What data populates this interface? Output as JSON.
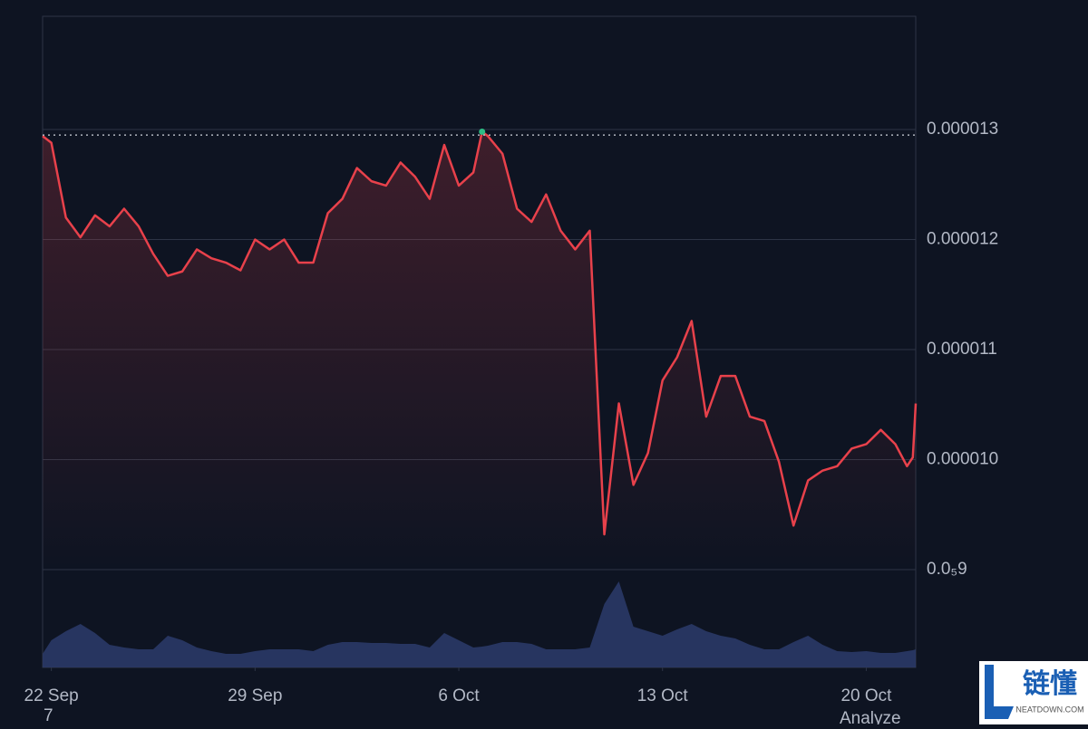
{
  "chart_data": {
    "type": "line",
    "x": [
      -0.3,
      0,
      0.5,
      1,
      1.5,
      2,
      2.5,
      3,
      3.5,
      4,
      4.5,
      5,
      5.5,
      6,
      6.5,
      7,
      7.5,
      8,
      8.5,
      9,
      9.5,
      10,
      10.5,
      11,
      11.5,
      12,
      12.5,
      13,
      13.5,
      14,
      14.5,
      14.8,
      15,
      15.5,
      16,
      16.5,
      17,
      17.5,
      18,
      18.5,
      19,
      19.5,
      20,
      20.5,
      21,
      21.5,
      22,
      22.5,
      23,
      23.5,
      24,
      24.5,
      25,
      25.5,
      26,
      26.5,
      27,
      27.5,
      28,
      28.5,
      29,
      29.4,
      29.6,
      29.7
    ],
    "series": [
      {
        "color": "#e8414b",
        "values": [
          1.294e-05,
          1.288e-05,
          1.22e-05,
          1.202e-05,
          1.222e-05,
          1.212e-05,
          1.228e-05,
          1.212e-05,
          1.187e-05,
          1.167e-05,
          1.171e-05,
          1.191e-05,
          1.183e-05,
          1.179e-05,
          1.172e-05,
          1.2e-05,
          1.191e-05,
          1.2e-05,
          1.179e-05,
          1.179e-05,
          1.224e-05,
          1.237e-05,
          1.265e-05,
          1.253e-05,
          1.249e-05,
          1.27e-05,
          1.257e-05,
          1.237e-05,
          1.286e-05,
          1.249e-05,
          1.261e-05,
          1.298e-05,
          1.294e-05,
          1.278e-05,
          1.228e-05,
          1.216e-05,
          1.241e-05,
          1.208e-05,
          1.191e-05,
          1.208e-05,
          9.32e-06,
          1.051e-05,
          9.77e-06,
          1.006e-05,
          1.072e-05,
          1.093e-05,
          1.126e-05,
          1.039e-05,
          1.076e-05,
          1.076e-05,
          1.039e-05,
          1.035e-05,
          9.98e-06,
          9.4e-06,
          9.81e-06,
          9.9e-06,
          9.94e-06,
          1.01e-05,
          1.014e-05,
          1.027e-05,
          1.014e-05,
          9.94e-06,
          1.002e-05,
          1.051e-05
        ]
      }
    ],
    "volume": {
      "color": "#2c3b6b",
      "vlim": [
        0,
        100
      ],
      "values": [
        15,
        30,
        40,
        48,
        38,
        25,
        22,
        20,
        20,
        35,
        30,
        22,
        18,
        15,
        15,
        18,
        20,
        20,
        20,
        18,
        25,
        28,
        28,
        27,
        27,
        26,
        26,
        22,
        38,
        30,
        22,
        23,
        24,
        28,
        28,
        26,
        20,
        20,
        20,
        22,
        70,
        95,
        45,
        40,
        35,
        42,
        48,
        40,
        35,
        32,
        25,
        20,
        20,
        28,
        35,
        25,
        18,
        17,
        18,
        16,
        16,
        18,
        19,
        20
      ]
    },
    "high": 1.295e-05,
    "xlim": [
      -0.3,
      29.7
    ],
    "xticks": [
      {
        "value": 0,
        "label": "22 Sep"
      },
      {
        "value": 7,
        "label": "29 Sep"
      },
      {
        "value": 14,
        "label": "6 Oct"
      },
      {
        "value": 21,
        "label": "13 Oct"
      },
      {
        "value": 28,
        "label": "20 Oct"
      }
    ],
    "ylim": [
      8.111e-06,
      1.4029e-05
    ],
    "yticks": [
      {
        "value": 9e-06,
        "label": "0.0₅9"
      },
      {
        "value": 1e-05,
        "label": "0.000010"
      },
      1.1e-05,
      1.2e-05,
      1.3e-05
    ],
    "grid": true
  },
  "footer": {
    "left": "7",
    "right": "Analyze"
  },
  "logo": {
    "name": "链懂",
    "site": "NEATDOWN.COM"
  }
}
